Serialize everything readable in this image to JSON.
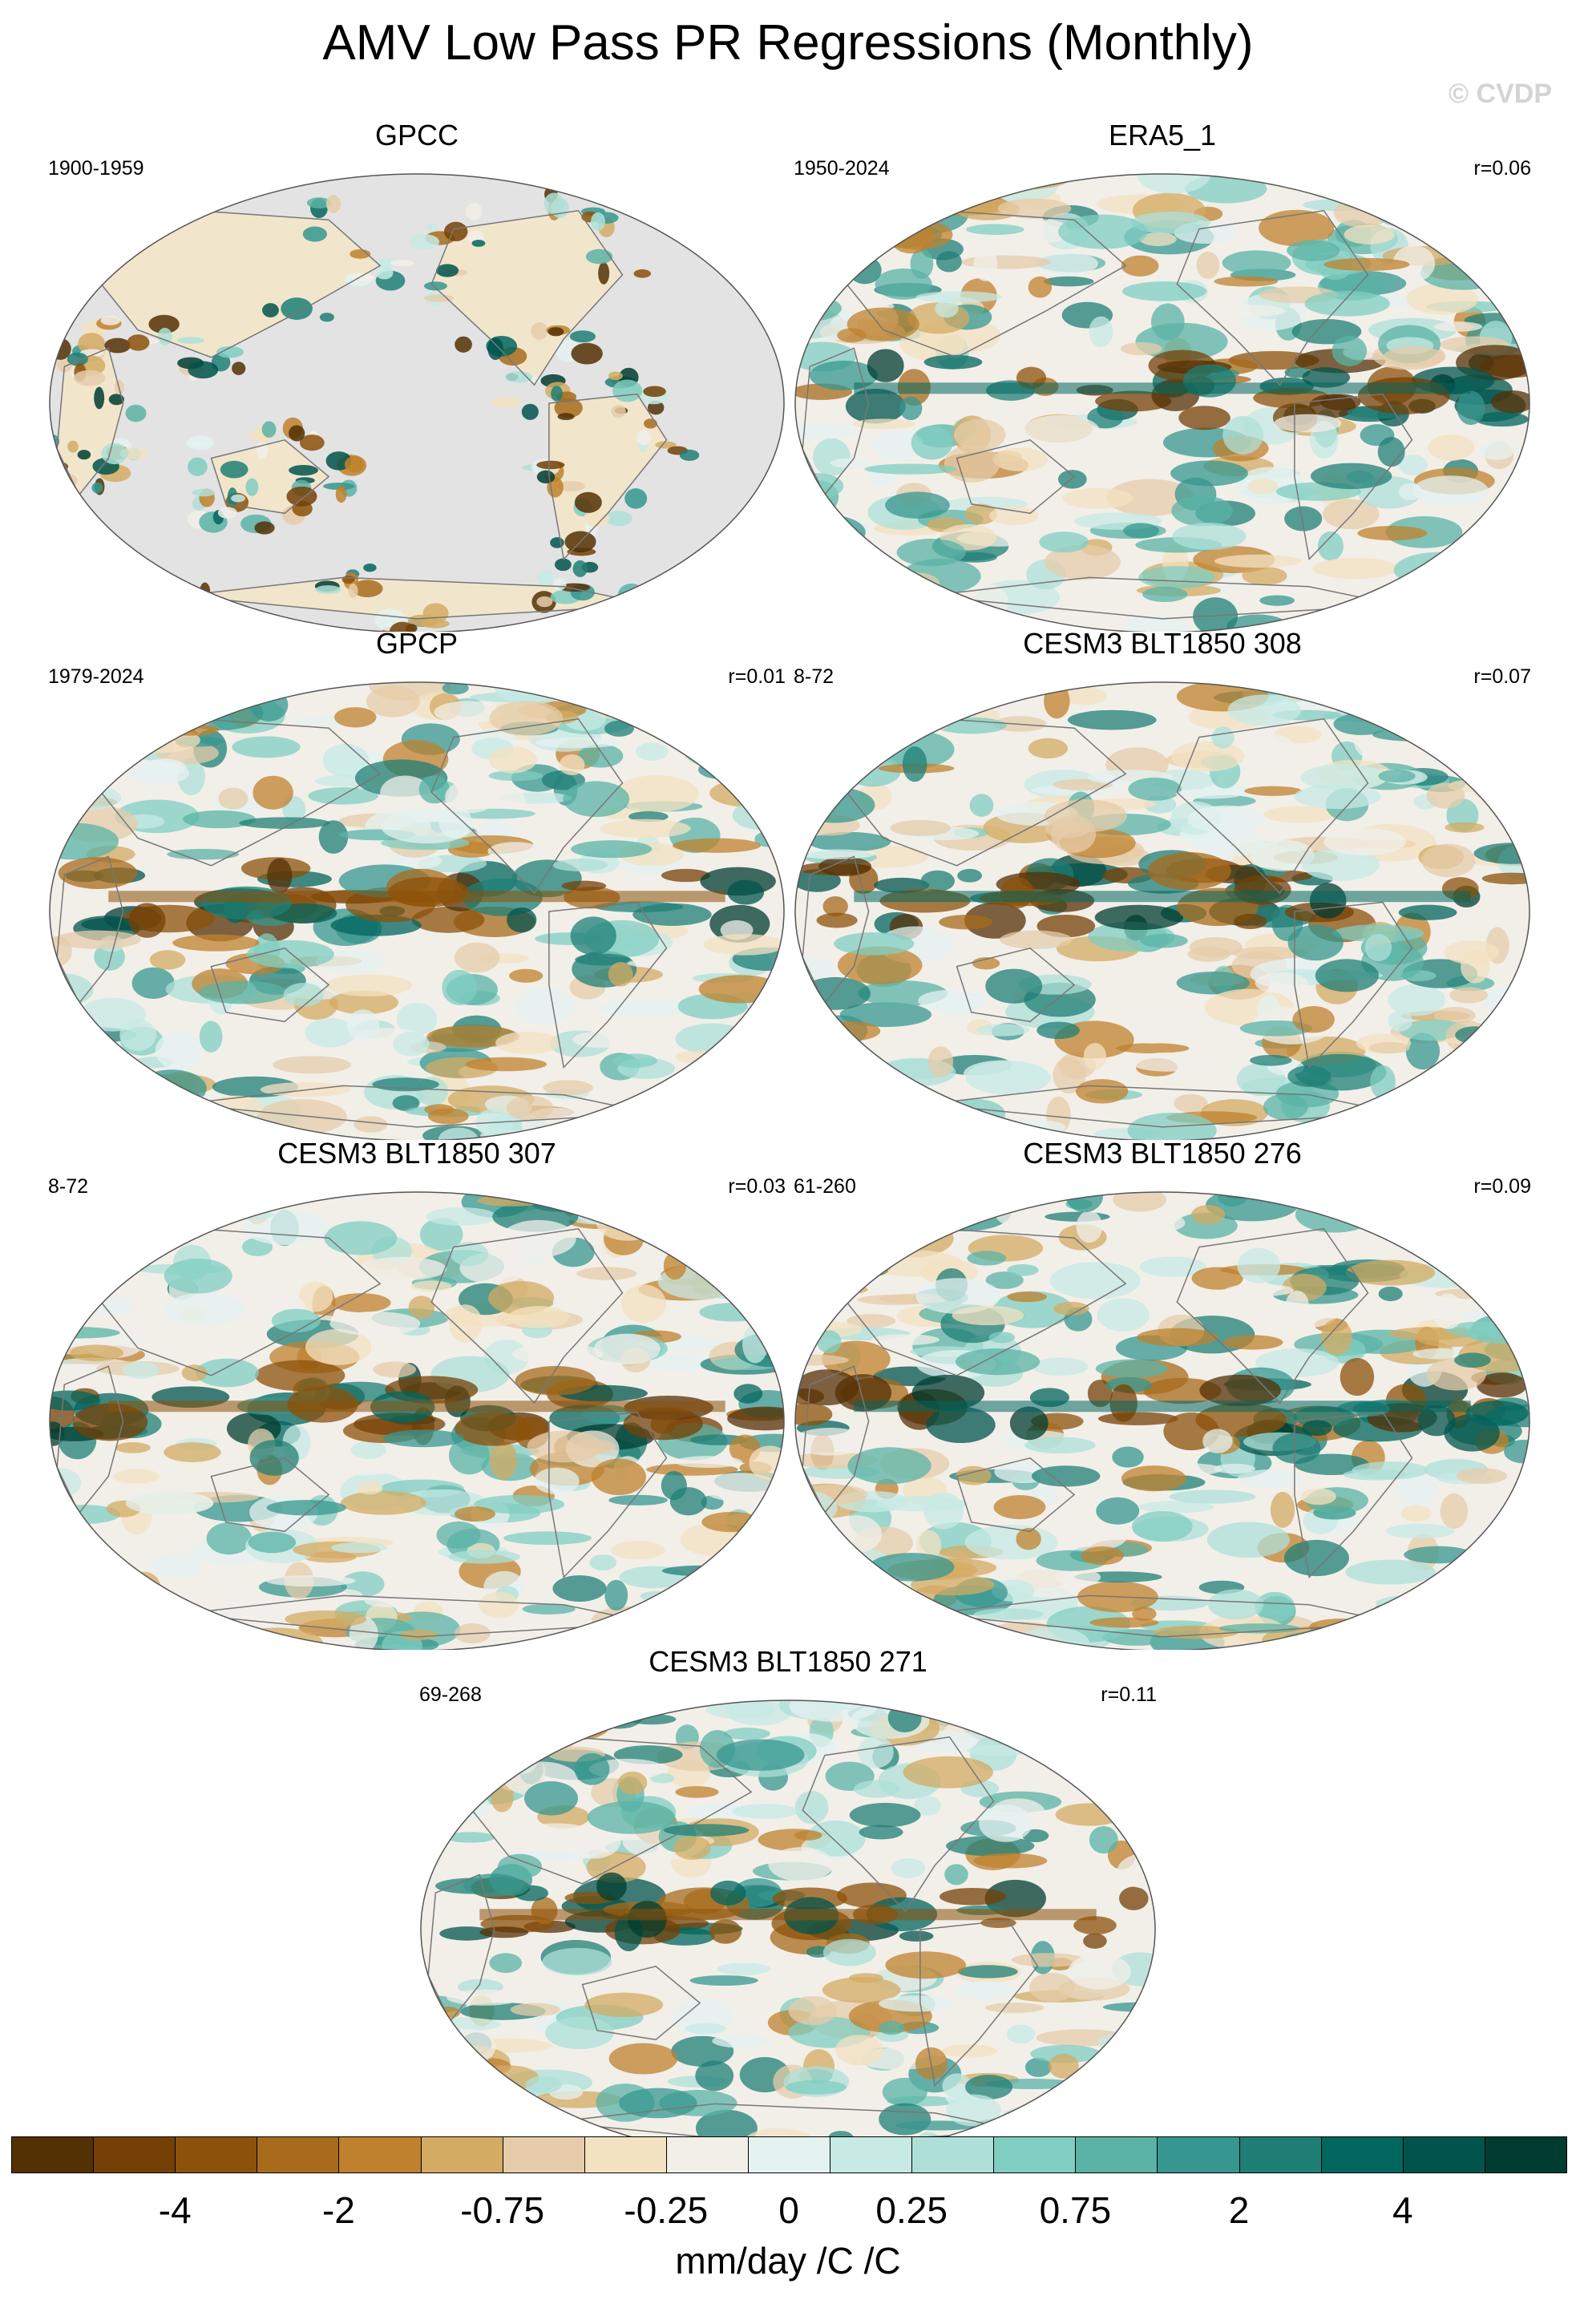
{
  "title": "AMV Low Pass PR Regressions (Monthly)",
  "watermark": "© CVDP",
  "chart_data": {
    "type": "heatmap",
    "title": "AMV Low Pass PR Regressions (Monthly)",
    "projection": "global map, Pacific-centered",
    "units": "mm/day /C /C",
    "panels": [
      {
        "name": "GPCC",
        "years": "1900-1959",
        "r": "",
        "coverage": "land only"
      },
      {
        "name": "ERA5_1",
        "years": "1950-2024",
        "r": "r=0.06",
        "coverage": "global"
      },
      {
        "name": "GPCP",
        "years": "1979-2024",
        "r": "r=0.01",
        "coverage": "global"
      },
      {
        "name": "CESM3 BLT1850 308",
        "years": "8-72",
        "r": "r=0.07",
        "coverage": "global"
      },
      {
        "name": "CESM3 BLT1850 307",
        "years": "8-72",
        "r": "r=0.03",
        "coverage": "global"
      },
      {
        "name": "CESM3 BLT1850 276",
        "years": "61-260",
        "r": "r=0.09",
        "coverage": "global"
      },
      {
        "name": "CESM3 BLT1850 271",
        "years": "69-268",
        "r": "r=0.11",
        "coverage": "global"
      }
    ],
    "colorbar": {
      "tick_labels": [
        "-4",
        "-2",
        "-0.75",
        "-0.25",
        "0",
        "0.25",
        "0.75",
        "2",
        "4"
      ],
      "colors": [
        "#543005",
        "#744006",
        "#8c510a",
        "#a86b1c",
        "#bf812d",
        "#d3ab63",
        "#e6ccaa",
        "#f3e2c1",
        "#f2efe9",
        "#e4f2f0",
        "#c7eae5",
        "#aee0d8",
        "#80cdc1",
        "#5ab3a6",
        "#35978f",
        "#1f7f76",
        "#01665e",
        "#01544c",
        "#003c30"
      ]
    }
  }
}
